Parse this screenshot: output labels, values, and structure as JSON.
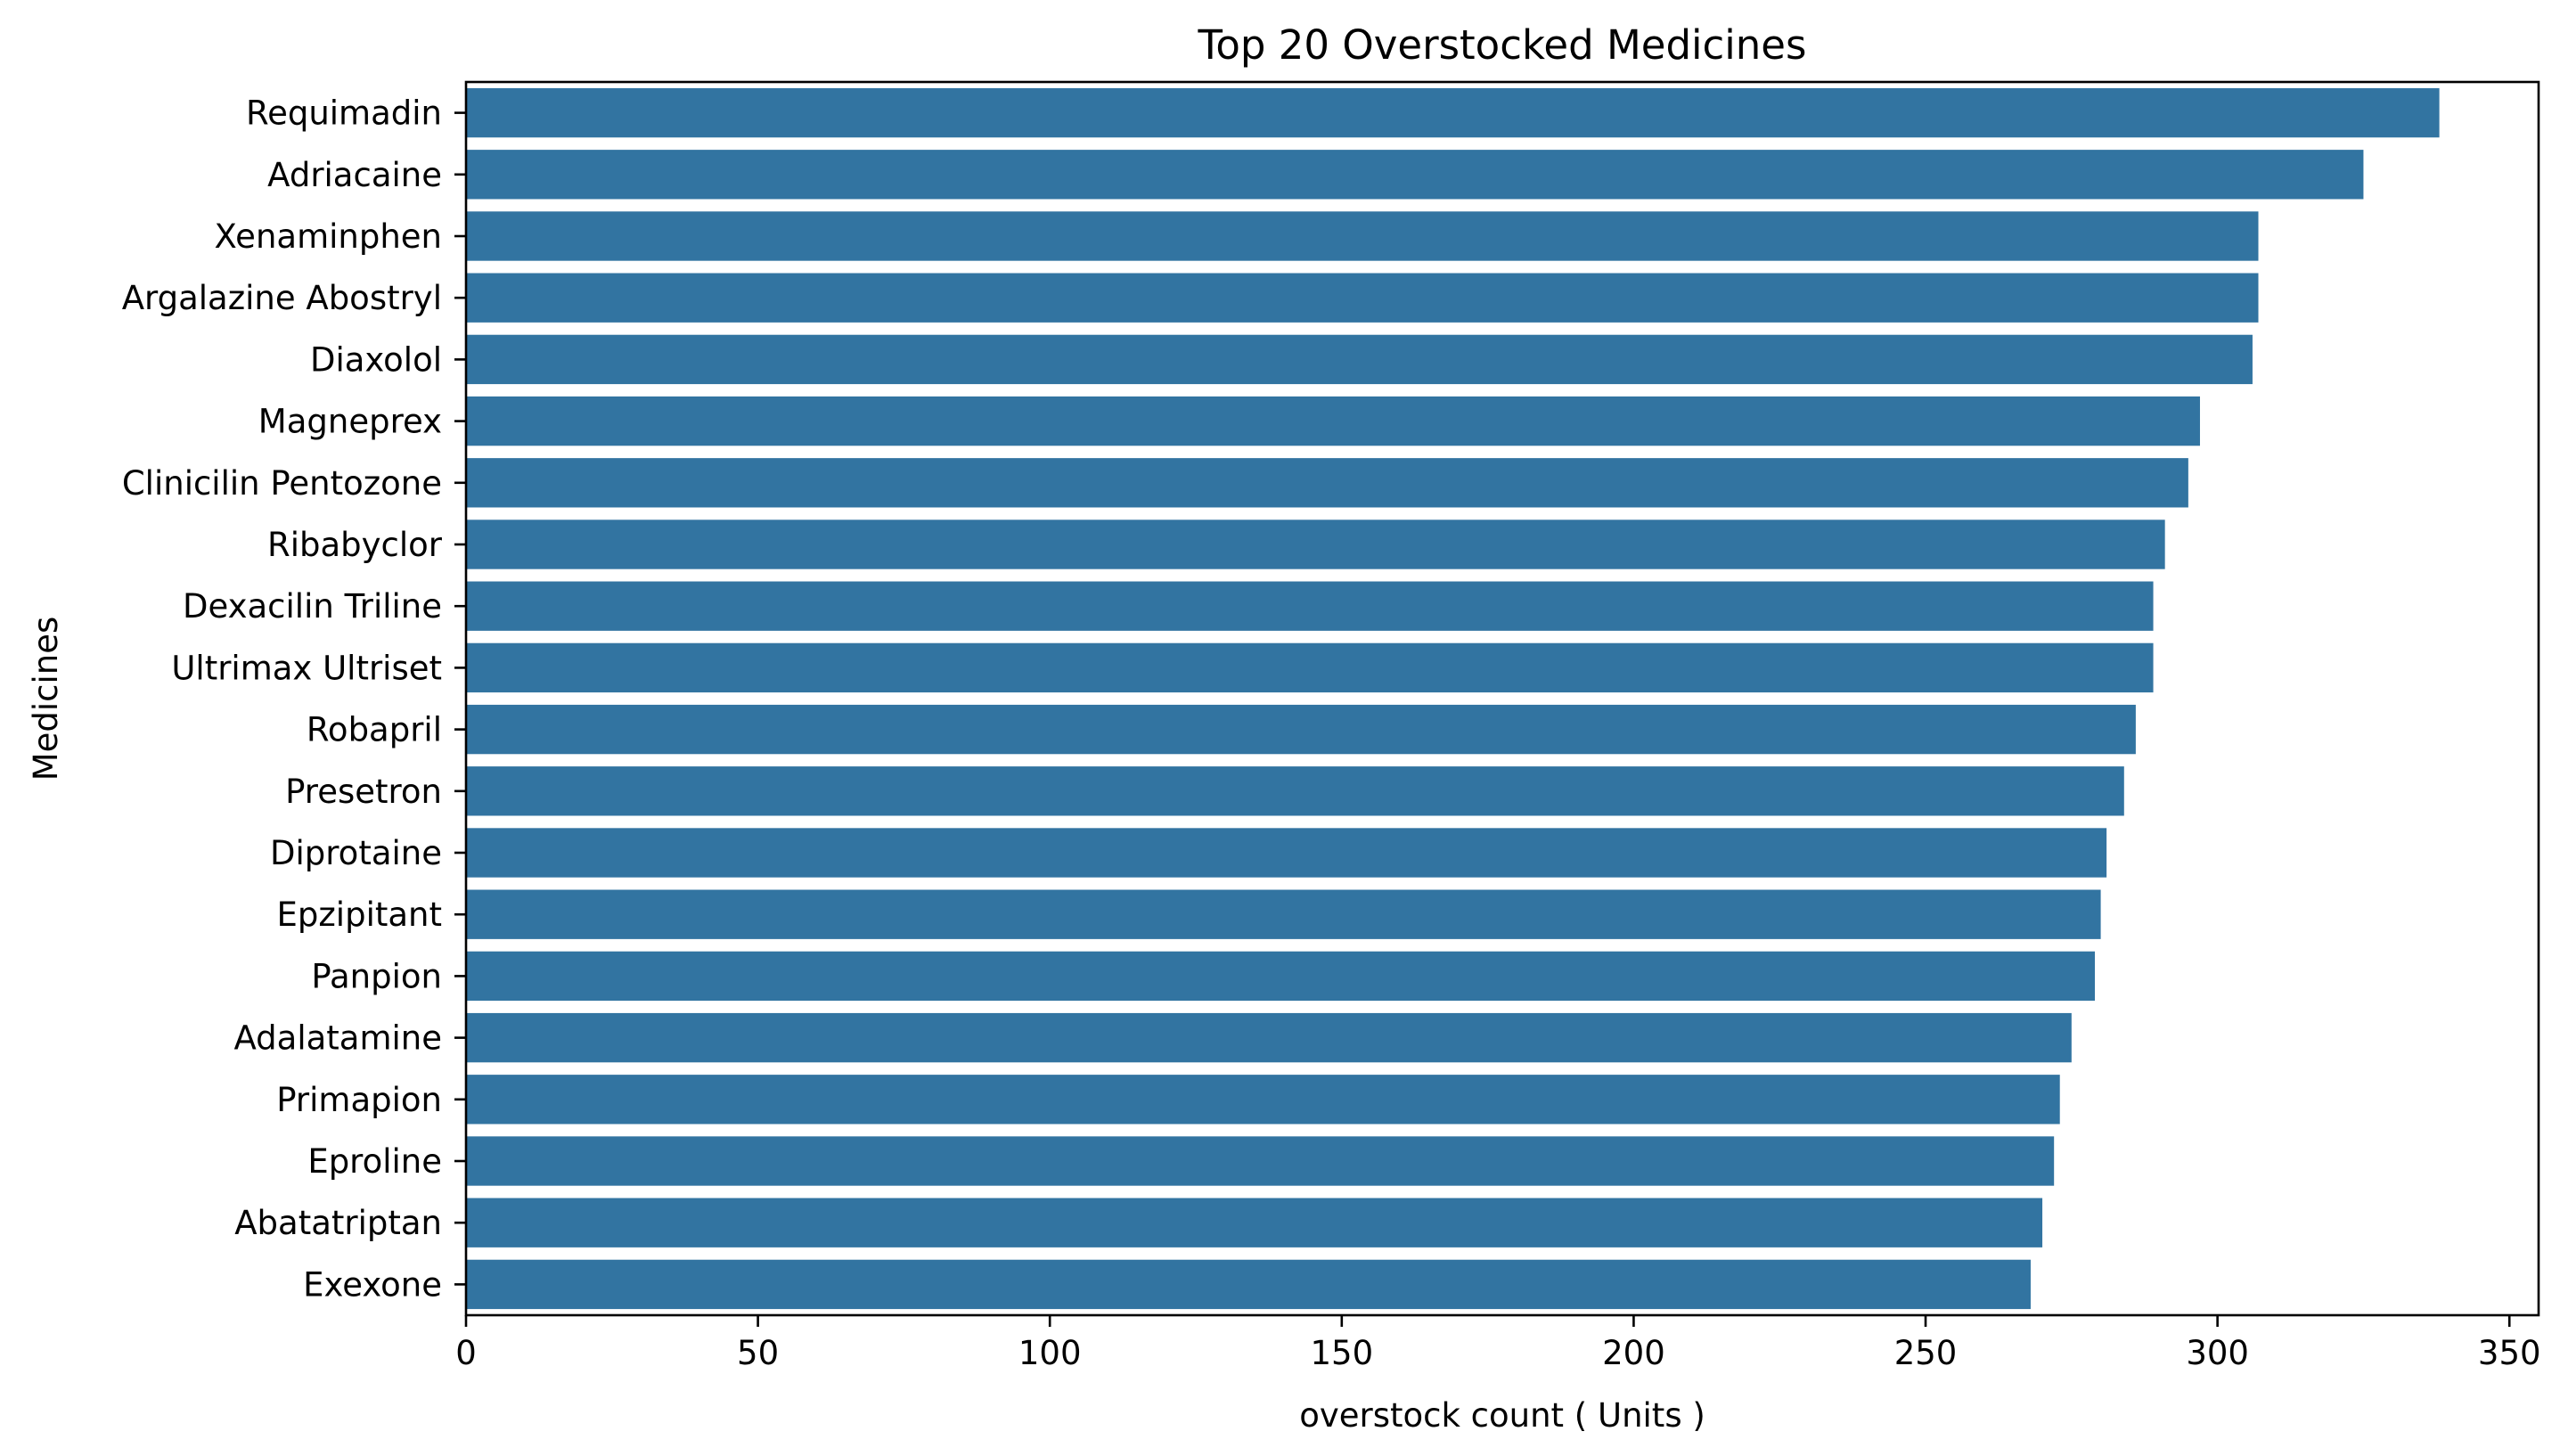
{
  "colors": {
    "bar": "#3274a1",
    "axis": "#000000",
    "background": "#ffffff"
  },
  "chart_data": {
    "type": "bar",
    "orientation": "horizontal",
    "title": "Top 20 Overstocked Medicines",
    "xlabel": "overstock count ( Units )",
    "ylabel": "Medicines",
    "xlim": [
      0,
      355
    ],
    "xticks": [
      0,
      50,
      100,
      150,
      200,
      250,
      300,
      350
    ],
    "grid": false,
    "categories": [
      "Requimadin",
      "Adriacaine",
      "Xenaminphen",
      "Argalazine Abostryl",
      "Diaxolol",
      "Magneprex",
      "Clinicilin Pentozone",
      "Ribabyclor",
      "Dexacilin Triline",
      "Ultrimax Ultriset",
      "Robapril",
      "Presetron",
      "Diprotaine",
      "Epzipitant",
      "Panpion",
      "Adalatamine",
      "Primapion",
      "Eproline",
      "Abatatriptan",
      "Exexone"
    ],
    "values": [
      338,
      325,
      307,
      307,
      306,
      297,
      295,
      291,
      289,
      289,
      286,
      284,
      281,
      280,
      279,
      275,
      273,
      272,
      270,
      268
    ]
  }
}
